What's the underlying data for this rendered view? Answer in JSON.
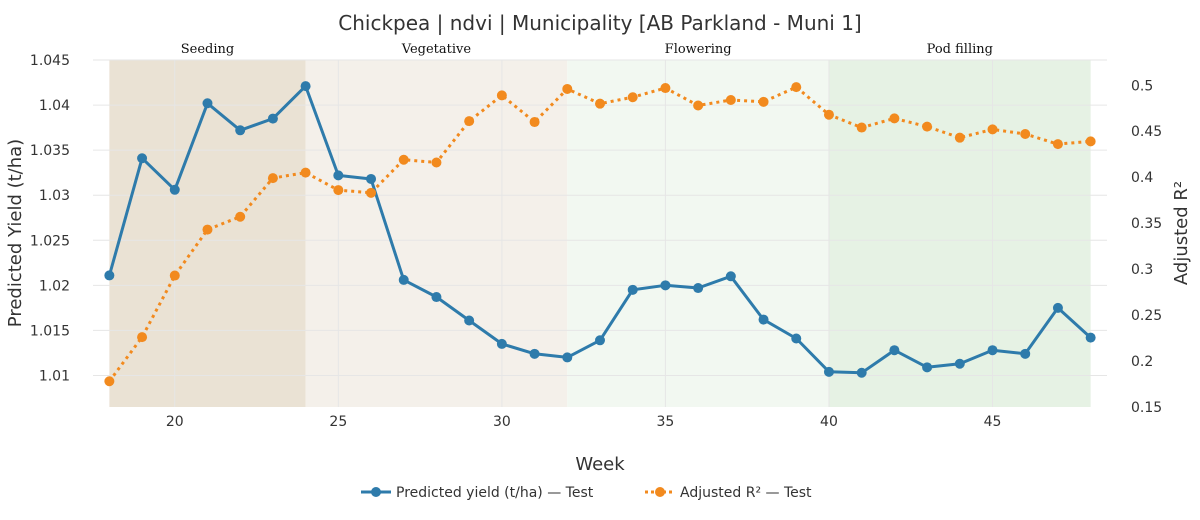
{
  "chart_data": {
    "type": "line",
    "title": "Chickpea | ndvi | Municipality [AB Parkland - Muni 1]",
    "xlabel": "Week",
    "ylabel": "Predicted Yield (t/ha)",
    "y2label": "Adjusted R²",
    "xlim": [
      17.5,
      48.5
    ],
    "ylim": [
      1.0065,
      1.045
    ],
    "y2lim": [
      0.15,
      0.5275
    ],
    "x_ticks": [
      20,
      25,
      30,
      35,
      40,
      45
    ],
    "y_ticks": [
      "1.01",
      "1.015",
      "1.02",
      "1.025",
      "1.03",
      "1.035",
      "1.04",
      "1.045"
    ],
    "y2_ticks": [
      "0.15",
      "0.2",
      "0.25",
      "0.3",
      "0.35",
      "0.4",
      "0.45",
      "0.5"
    ],
    "grid": true,
    "legend_position": "bottom-center",
    "phases": [
      {
        "label": "Seeding",
        "start": 18,
        "end": 24,
        "color": "#eae2d4"
      },
      {
        "label": "Vegetative",
        "start": 24,
        "end": 32,
        "color": "#f4f0ea"
      },
      {
        "label": "Flowering",
        "start": 32,
        "end": 40,
        "color": "#f2f8f1"
      },
      {
        "label": "Pod filling",
        "start": 40,
        "end": 48,
        "color": "#e6f2e4"
      }
    ],
    "series": [
      {
        "name": "Predicted yield (t/ha) — Test",
        "axis": "left",
        "color": "#2e7bab",
        "dash": "solid",
        "x": [
          18,
          19,
          20,
          21,
          22,
          23,
          24,
          25,
          26,
          27,
          28,
          29,
          30,
          31,
          32,
          33,
          34,
          35,
          36,
          37,
          38,
          39,
          40,
          41,
          42,
          43,
          44,
          45,
          46,
          47,
          48
        ],
        "values": [
          1.0211,
          1.0341,
          1.0306,
          1.0402,
          1.0372,
          1.0385,
          1.0421,
          1.0322,
          1.0318,
          1.0206,
          1.0187,
          1.0161,
          1.0135,
          1.0124,
          1.012,
          1.0139,
          1.0195,
          1.02,
          1.0197,
          1.021,
          1.0162,
          1.0141,
          1.0104,
          1.0103,
          1.0128,
          1.0109,
          1.0113,
          1.0128,
          1.0124,
          1.0175,
          1.0142
        ]
      },
      {
        "name": "Adjusted R² — Test",
        "axis": "right",
        "color": "#f28a1e",
        "dash": "dot",
        "x": [
          18,
          19,
          20,
          21,
          22,
          23,
          24,
          25,
          26,
          27,
          28,
          29,
          30,
          31,
          32,
          33,
          34,
          35,
          36,
          37,
          38,
          39,
          40,
          41,
          42,
          43,
          44,
          45,
          46,
          47,
          48
        ],
        "values": [
          0.178,
          0.226,
          0.293,
          0.343,
          0.357,
          0.399,
          0.405,
          0.386,
          0.383,
          0.419,
          0.416,
          0.461,
          0.489,
          0.46,
          0.496,
          0.48,
          0.487,
          0.497,
          0.478,
          0.484,
          0.482,
          0.498,
          0.468,
          0.454,
          0.464,
          0.455,
          0.443,
          0.452,
          0.447,
          0.436,
          0.439
        ]
      }
    ]
  }
}
